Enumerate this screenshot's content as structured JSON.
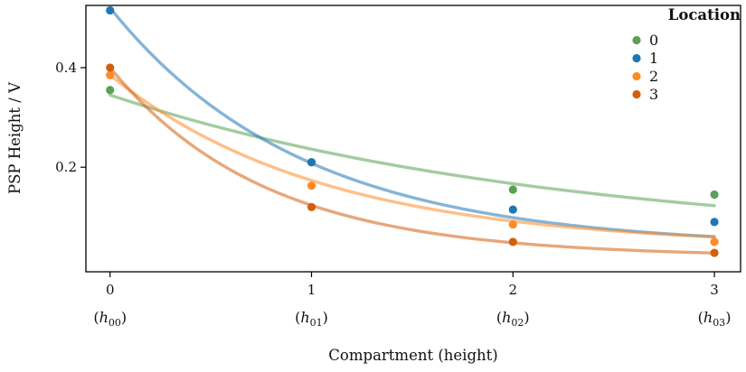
{
  "chart_data": {
    "type": "scatter",
    "title": "",
    "xlabel": "Compartment (height)",
    "ylabel": "PSP Height / V",
    "x_ticks": [
      "0",
      "1",
      "2",
      "3"
    ],
    "x_sub_ticks": [
      "(h_{00})",
      "(h_{01})",
      "(h_{02})",
      "(h_{03})"
    ],
    "y_ticks": [
      0.2,
      0.4
    ],
    "xlim": [
      -0.12,
      3.13
    ],
    "ylim": [
      -0.01,
      0.525
    ],
    "grid": false,
    "legend": {
      "title": "Location",
      "position": "upper right"
    },
    "series": [
      {
        "name": "0",
        "color": "#5aa155",
        "x": [
          0,
          1,
          2,
          3
        ],
        "y": [
          0.355,
          0.21,
          0.155,
          0.145
        ],
        "fit": {
          "model": "a*exp(-b*x)+c",
          "a": 0.3,
          "b": 0.45,
          "c": 0.045
        }
      },
      {
        "name": "1",
        "color": "#1f77b4",
        "x": [
          0,
          1,
          2,
          3
        ],
        "y": [
          0.515,
          0.21,
          0.115,
          0.09
        ],
        "fit": {
          "model": "a*exp(-b*x)+c",
          "a": 0.48,
          "b": 1.05,
          "c": 0.04
        }
      },
      {
        "name": "2",
        "color": "#ff8b26",
        "x": [
          0,
          1,
          2,
          3
        ],
        "y": [
          0.385,
          0.163,
          0.085,
          0.05
        ],
        "fit": {
          "model": "a*exp(-b*x)+c",
          "a": 0.345,
          "b": 0.95,
          "c": 0.04
        }
      },
      {
        "name": "3",
        "color": "#d35f0c",
        "x": [
          0,
          1,
          2,
          3
        ],
        "y": [
          0.4,
          0.12,
          0.05,
          0.028
        ],
        "fit": {
          "model": "a*exp(-b*x)+c",
          "a": 0.38,
          "b": 1.3,
          "c": 0.02
        }
      }
    ]
  }
}
